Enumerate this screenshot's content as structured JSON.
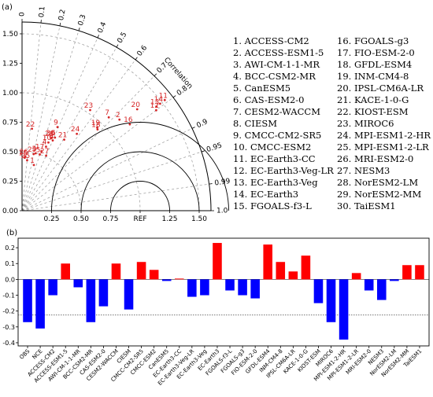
{
  "panel_a_label": "(a)",
  "panel_b_label": "(b)",
  "chart_data": [
    {
      "type": "scatter",
      "subtype": "taylor-diagram",
      "correlation_label": "Correlation",
      "ref_label": "REF",
      "corr_ticks": [
        "0",
        "0.1",
        "0.2",
        "0.3",
        "0.4",
        "0.5",
        "0.6",
        "0.7",
        "0.8",
        "0.9",
        "0.95",
        "0.99",
        "1.0"
      ],
      "std_ticks_x": [
        "0.25",
        "0.50",
        "0.75",
        "1.25",
        "1.50"
      ],
      "std_ticks_y": [
        "0.00",
        "0.25",
        "0.50",
        "0.75",
        "1.00",
        "1.25",
        "1.50"
      ],
      "std_range": [
        0,
        1.6
      ],
      "ref_std": 1.0,
      "points": [
        {
          "label": "1",
          "std": 0.4,
          "corr": 0.25
        },
        {
          "label": "2",
          "std": 1.13,
          "corr": 0.73
        },
        {
          "label": "3",
          "std": 0.5,
          "corr": 0.23
        },
        {
          "label": "4",
          "std": 0.58,
          "corr": 0.35
        },
        {
          "label": "5",
          "std": 0.5,
          "corr": 0.3
        },
        {
          "label": "6",
          "std": 0.68,
          "corr": 0.41
        },
        {
          "label": "7",
          "std": 1.08,
          "corr": 0.68
        },
        {
          "label": "8",
          "std": 0.65,
          "corr": 0.4
        },
        {
          "label": "9",
          "std": 0.77,
          "corr": 0.39
        },
        {
          "label": "10",
          "std": 0.62,
          "corr": 0.36
        },
        {
          "label": "11",
          "std": 1.53,
          "corr": 0.79
        },
        {
          "label": "12",
          "std": 1.42,
          "corr": 0.8
        },
        {
          "label": "13",
          "std": 1.44,
          "corr": 0.79
        },
        {
          "label": "14",
          "std": 1.48,
          "corr": 0.79
        },
        {
          "label": "15",
          "std": 0.45,
          "corr": 0.05
        },
        {
          "label": "16",
          "std": 1.17,
          "corr": 0.78
        },
        {
          "label": "17",
          "std": 0.53,
          "corr": 0.31
        },
        {
          "label": "18",
          "std": 0.94,
          "corr": 0.68
        },
        {
          "label": "19",
          "std": 0.95,
          "corr": 0.67
        },
        {
          "label": "20",
          "std": 1.3,
          "corr": 0.75
        },
        {
          "label": "21",
          "std": 0.7,
          "corr": 0.51
        },
        {
          "label": "22",
          "std": 0.7,
          "corr": 0.12
        },
        {
          "label": "23",
          "std": 1.03,
          "corr": 0.56
        },
        {
          "label": "24",
          "std": 0.8,
          "corr": 0.58
        },
        {
          "label": "25",
          "std": 0.43,
          "corr": 0.1
        },
        {
          "label": "26",
          "std": 0.46,
          "corr": 0.06
        },
        {
          "label": "27",
          "std": 0.51,
          "corr": 0.4
        },
        {
          "label": "28",
          "std": 0.66,
          "corr": 0.37
        },
        {
          "label": "29",
          "std": 0.49,
          "corr": 0.2
        },
        {
          "label": "30",
          "std": 0.67,
          "corr": 0.38
        }
      ],
      "legend": [
        "1. ACCESS-CM2",
        "2. ACCESS-ESM1-5",
        "3. AWI-CM-1-1-MR",
        "4. BCC-CSM2-MR",
        "5. CanESM5",
        "6. CAS-ESM2-0",
        "7. CESM2-WACCM",
        "8. CIESM",
        "9. CMCC-CM2-SR5",
        "10. CMCC-ESM2",
        "11. EC-Earth3-CC",
        "12. EC-Earth3-Veg-LR",
        "13. EC-Earth3-Veg",
        "14. EC-Earth3",
        "15. FGOALS-f3-L",
        "16. FGOALS-g3",
        "17. FIO-ESM-2-0",
        "18. GFDL-ESM4",
        "19. INM-CM4-8",
        "20. IPSL-CM6A-LR",
        "21. KACE-1-0-G",
        "22. KIOST-ESM",
        "23. MIROC6",
        "24. MPI-ESM1-2-HR",
        "25. MPI-ESM1-2-LR",
        "26. MRI-ESM2-0",
        "27. NESM3",
        "28. NorESM2-LM",
        "29. NorESM2-MM",
        "30. TaiESM1"
      ]
    },
    {
      "type": "bar",
      "categories": [
        "OBS",
        "NCE",
        "ACCESS-CM2",
        "ACCESS-ESM1-5",
        "AWI-CM-1-1-MR",
        "BCC-CSM2-MR",
        "CAS-ESM2-0",
        "CESM2-WACCM",
        "CIESM",
        "CMCC-CM2-SR5",
        "CMCC-ESM2",
        "CanESM5",
        "EC-Earth3-CC",
        "EC-Earth3-Veg-LR",
        "EC-Earth3-Veg",
        "EC-Earth3",
        "FGOALS-f3-L",
        "FGOALS-g3",
        "FIO-ESM-2-0",
        "GFDL-ESM4",
        "INM-CM4-8",
        "IPSL-CM6A-LR",
        "KACE-1-0-G",
        "KIOST-ESM",
        "MIROC6",
        "MPI-ESM1-2-HR",
        "MPI-ESM1-2-LR",
        "MRI-ESM2-0",
        "NESM3",
        "NorESM2-LM",
        "NorESM2-MM",
        "TaiESM1"
      ],
      "values": [
        -0.27,
        -0.31,
        -0.1,
        0.1,
        -0.05,
        -0.27,
        -0.17,
        0.1,
        -0.19,
        0.11,
        0.06,
        -0.01,
        0.005,
        -0.11,
        -0.1,
        0.23,
        -0.07,
        -0.1,
        -0.12,
        0.22,
        0.11,
        0.05,
        0.15,
        -0.15,
        -0.27,
        -0.38,
        0.04,
        -0.07,
        -0.13,
        -0.01,
        0.09,
        0.09
      ],
      "ylim": [
        -0.42,
        0.26
      ],
      "yticks": [
        "0.2",
        "0.1",
        "0.0",
        "-0.1",
        "-0.2",
        "-0.3",
        "-0.4"
      ],
      "reference_line": -0.225,
      "colors": {
        "positive": "#ff0000",
        "negative": "#0000ff"
      }
    }
  ]
}
